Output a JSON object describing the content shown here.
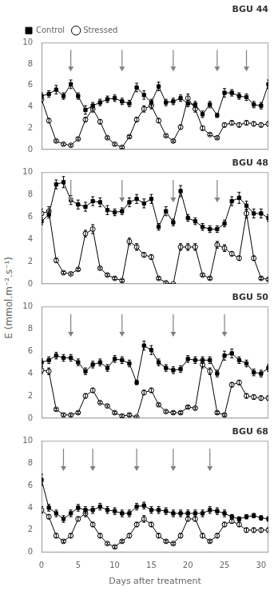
{
  "chart_data": [
    {
      "type": "line",
      "title": "BGU 44",
      "ylabel": "E (mmol.m⁻².s⁻¹)",
      "legend": "upper left",
      "xlim": [
        0,
        31
      ],
      "xticks": [
        0,
        5,
        10,
        15,
        20,
        25,
        30
      ],
      "ylim": [
        0,
        10
      ],
      "yticks": [
        0,
        2,
        4,
        6,
        8,
        10
      ],
      "grid": false,
      "tick_labels": "y",
      "series": [
        {
          "name": "Control",
          "color": "#000000",
          "marker": "filled_square",
          "line_style": "solid",
          "x": [
            0,
            1,
            2,
            3,
            4,
            5,
            6,
            7,
            8,
            9,
            10,
            11,
            12,
            13,
            14,
            15,
            16,
            17,
            18,
            19,
            20,
            21,
            22,
            23,
            24,
            25,
            26,
            27,
            28,
            29,
            30,
            31
          ],
          "values": [
            5.0,
            5.2,
            5.6,
            5.0,
            6.1,
            5.0,
            3.7,
            4.1,
            4.4,
            4.7,
            4.8,
            4.5,
            4.3,
            5.8,
            5.1,
            4.4,
            5.9,
            4.4,
            4.5,
            4.8,
            4.3,
            4.2,
            3.3,
            4.2,
            3.2,
            5.3,
            5.3,
            5.0,
            4.9,
            4.2,
            4.1,
            6.1
          ],
          "errors": [
            0.3,
            0.3,
            0.4,
            0.3,
            0.4,
            0.3,
            0.4,
            0.3,
            0.3,
            0.3,
            0.3,
            0.3,
            0.3,
            0.4,
            0.4,
            0.3,
            0.4,
            0.3,
            0.3,
            0.3,
            0.3,
            0.3,
            0.3,
            0.3,
            0.2,
            0.4,
            0.3,
            0.3,
            0.3,
            0.3,
            0.3,
            0.4
          ]
        },
        {
          "name": "Stressed",
          "color": "#000000",
          "marker": "open_circle",
          "line_style": "solid",
          "x": [
            0,
            1,
            2,
            3,
            4,
            5,
            6,
            7,
            8,
            9,
            10,
            11,
            12,
            13,
            14,
            15,
            16,
            17,
            18,
            19,
            20,
            21,
            22,
            23,
            24,
            25,
            26,
            27,
            28,
            29,
            30,
            31
          ],
          "values": [
            4.7,
            2.7,
            0.8,
            0.5,
            0.4,
            1.0,
            2.8,
            3.8,
            2.6,
            1.1,
            0.5,
            0.2,
            1.2,
            2.8,
            3.8,
            4.1,
            2.7,
            1.3,
            0.8,
            2.1,
            4.8,
            3.8,
            2.0,
            1.4,
            1.1,
            2.3,
            2.5,
            2.3,
            2.5,
            2.4,
            2.3,
            2.4
          ],
          "errors": [
            0.3,
            0.2,
            0.1,
            0.1,
            0.1,
            0.1,
            0.2,
            0.3,
            0.2,
            0.1,
            0.1,
            0.1,
            0.1,
            0.2,
            0.3,
            0.3,
            0.2,
            0.1,
            0.1,
            0.2,
            0.4,
            0.3,
            0.2,
            0.1,
            0.1,
            0.2,
            0.2,
            0.2,
            0.2,
            0.2,
            0.2,
            0.2
          ]
        }
      ],
      "arrows": {
        "x": [
          4,
          11,
          18,
          24,
          28
        ],
        "from": 9.3,
        "to": 7.3,
        "color": "#808080"
      }
    },
    {
      "type": "line",
      "title": "BGU 48",
      "xlim": [
        0,
        31
      ],
      "xticks": [
        0,
        5,
        10,
        15,
        20,
        25,
        30
      ],
      "ylim": [
        0,
        10
      ],
      "yticks": [
        0,
        2,
        4,
        6,
        8,
        10
      ],
      "grid": false,
      "tick_labels": "y",
      "series": [
        {
          "name": "Control",
          "color": "#000000",
          "marker": "filled_square",
          "line_style": "solid",
          "x": [
            0,
            1,
            2,
            3,
            4,
            5,
            6,
            7,
            8,
            9,
            10,
            11,
            12,
            13,
            14,
            15,
            16,
            17,
            18,
            19,
            20,
            21,
            22,
            23,
            24,
            25,
            26,
            27,
            28,
            29,
            30,
            31
          ],
          "values": [
            5.6,
            6.2,
            8.9,
            9.1,
            7.5,
            7.1,
            6.9,
            7.4,
            7.3,
            6.6,
            6.4,
            6.5,
            7.3,
            7.6,
            7.2,
            7.6,
            5.1,
            6.5,
            5.5,
            8.3,
            5.9,
            5.6,
            5.1,
            4.9,
            4.9,
            5.4,
            7.4,
            7.7,
            7.0,
            6.3,
            6.3,
            5.9
          ],
          "errors": [
            0.3,
            0.3,
            0.4,
            0.5,
            0.4,
            0.4,
            0.4,
            0.4,
            0.4,
            0.4,
            0.3,
            0.3,
            0.4,
            0.4,
            0.4,
            0.4,
            0.3,
            0.4,
            0.3,
            0.5,
            0.3,
            0.3,
            0.3,
            0.3,
            0.3,
            0.3,
            0.4,
            0.5,
            0.4,
            0.4,
            0.4,
            0.3
          ]
        },
        {
          "name": "Stressed",
          "color": "#000000",
          "marker": "open_circle",
          "line_style": "solid",
          "x": [
            0,
            1,
            2,
            3,
            4,
            5,
            6,
            7,
            8,
            9,
            10,
            11,
            12,
            13,
            14,
            15,
            16,
            17,
            18,
            19,
            20,
            21,
            22,
            23,
            24,
            25,
            26,
            27,
            28,
            29,
            30,
            31
          ],
          "values": [
            6.3,
            6.5,
            2.1,
            1.0,
            0.9,
            1.3,
            4.5,
            4.9,
            1.4,
            0.8,
            0.5,
            0.3,
            3.8,
            3.3,
            2.6,
            2.4,
            0.5,
            0.1,
            0.0,
            3.3,
            3.3,
            3.3,
            0.8,
            0.5,
            3.5,
            3.2,
            2.7,
            2.3,
            6.3,
            2.3,
            0.5,
            0.4
          ],
          "errors": [
            0.4,
            0.4,
            0.2,
            0.1,
            0.1,
            0.1,
            0.3,
            0.4,
            0.1,
            0.1,
            0.1,
            0.1,
            0.3,
            0.3,
            0.2,
            0.2,
            0.1,
            0.1,
            0.0,
            0.3,
            0.3,
            0.3,
            0.1,
            0.1,
            0.3,
            0.3,
            0.2,
            0.2,
            0.4,
            0.2,
            0.1,
            0.1
          ]
        }
      ],
      "arrows": {
        "x": [
          4,
          11,
          18,
          24
        ],
        "from": 9.3,
        "to": 7.3,
        "color": "#808080"
      }
    },
    {
      "type": "line",
      "title": "BGU 50",
      "xlim": [
        0,
        31
      ],
      "xticks": [
        0,
        5,
        10,
        15,
        20,
        25,
        30
      ],
      "ylim": [
        0,
        10
      ],
      "yticks": [
        0,
        2,
        4,
        6,
        8,
        10
      ],
      "grid": false,
      "tick_labels": "y",
      "series": [
        {
          "name": "Control",
          "color": "#000000",
          "marker": "filled_square",
          "line_style": "solid",
          "x": [
            0,
            1,
            2,
            3,
            4,
            5,
            6,
            7,
            8,
            9,
            10,
            11,
            12,
            13,
            14,
            15,
            16,
            17,
            18,
            19,
            20,
            21,
            22,
            23,
            24,
            25,
            26,
            27,
            28,
            29,
            30,
            31
          ],
          "values": [
            5.0,
            5.2,
            5.6,
            5.4,
            5.4,
            5.0,
            4.2,
            4.8,
            5.0,
            4.5,
            5.3,
            5.2,
            4.9,
            3.2,
            6.5,
            6.1,
            5.0,
            4.5,
            4.3,
            4.4,
            5.3,
            5.2,
            5.2,
            5.2,
            4.0,
            5.6,
            5.8,
            5.2,
            4.9,
            4.1,
            4.0,
            4.5
          ],
          "errors": [
            0.3,
            0.3,
            0.3,
            0.3,
            0.3,
            0.3,
            0.3,
            0.3,
            0.3,
            0.3,
            0.3,
            0.3,
            0.3,
            0.2,
            0.4,
            0.4,
            0.3,
            0.3,
            0.3,
            0.3,
            0.3,
            0.3,
            0.3,
            0.3,
            0.3,
            0.4,
            0.4,
            0.3,
            0.3,
            0.3,
            0.3,
            0.3
          ]
        },
        {
          "name": "Stressed",
          "color": "#000000",
          "marker": "open_circle",
          "line_style": "solid",
          "x": [
            0,
            1,
            2,
            3,
            4,
            5,
            6,
            7,
            8,
            9,
            10,
            11,
            12,
            13,
            14,
            15,
            16,
            17,
            18,
            19,
            20,
            21,
            22,
            23,
            24,
            25,
            26,
            27,
            28,
            29,
            30,
            31
          ],
          "values": [
            4.3,
            4.2,
            0.8,
            0.3,
            0.3,
            0.5,
            2.0,
            2.5,
            1.4,
            1.1,
            0.5,
            0.2,
            0.3,
            0.1,
            2.3,
            2.5,
            1.2,
            0.6,
            0.5,
            0.5,
            1.0,
            0.9,
            4.8,
            4.2,
            0.5,
            0.3,
            3.0,
            3.2,
            2.0,
            1.9,
            1.8,
            1.8
          ],
          "errors": [
            0.3,
            0.3,
            0.1,
            0.1,
            0.1,
            0.1,
            0.2,
            0.2,
            0.1,
            0.1,
            0.1,
            0.1,
            0.1,
            0.1,
            0.2,
            0.2,
            0.1,
            0.1,
            0.1,
            0.1,
            0.1,
            0.1,
            0.3,
            0.3,
            0.1,
            0.1,
            0.2,
            0.2,
            0.2,
            0.2,
            0.2,
            0.2
          ]
        }
      ],
      "arrows": {
        "x": [
          4,
          11,
          18,
          25
        ],
        "from": 9.3,
        "to": 7.3,
        "color": "#808080"
      }
    },
    {
      "type": "line",
      "title": "BGU 68",
      "xlabel": "Days after treatment",
      "xlim": [
        0,
        31
      ],
      "xticks": [
        0,
        5,
        10,
        15,
        20,
        25,
        30
      ],
      "ylim": [
        0,
        10
      ],
      "yticks": [
        0,
        2,
        4,
        6,
        8,
        10
      ],
      "grid": false,
      "tick_labels": true,
      "series": [
        {
          "name": "Control",
          "color": "#000000",
          "marker": "filled_square",
          "line_style": "solid",
          "x": [
            0,
            1,
            2,
            3,
            4,
            5,
            6,
            7,
            8,
            9,
            10,
            11,
            12,
            13,
            14,
            15,
            16,
            17,
            18,
            19,
            20,
            21,
            22,
            23,
            24,
            25,
            26,
            27,
            28,
            29,
            30,
            31
          ],
          "values": [
            6.5,
            4.0,
            3.5,
            3.0,
            3.5,
            4.0,
            3.8,
            3.8,
            4.1,
            3.8,
            3.7,
            3.5,
            3.5,
            4.1,
            4.2,
            3.8,
            3.8,
            3.7,
            3.5,
            3.5,
            3.5,
            3.5,
            3.5,
            3.8,
            3.7,
            3.5,
            3.2,
            3.0,
            3.2,
            3.3,
            3.1,
            3.0
          ],
          "errors": [
            0.5,
            0.3,
            0.3,
            0.3,
            0.3,
            0.3,
            0.3,
            0.3,
            0.3,
            0.3,
            0.3,
            0.3,
            0.3,
            0.3,
            0.3,
            0.3,
            0.3,
            0.3,
            0.3,
            0.3,
            0.3,
            0.3,
            0.3,
            0.3,
            0.3,
            0.3,
            0.2,
            0.2,
            0.2,
            0.2,
            0.2,
            0.2
          ]
        },
        {
          "name": "Stressed",
          "color": "#000000",
          "marker": "open_circle",
          "line_style": "solid",
          "x": [
            0,
            1,
            2,
            3,
            4,
            5,
            6,
            7,
            8,
            9,
            10,
            11,
            12,
            13,
            14,
            15,
            16,
            17,
            18,
            19,
            20,
            21,
            22,
            23,
            24,
            25,
            26,
            27,
            28,
            29,
            30,
            31
          ],
          "values": [
            3.8,
            3.2,
            1.5,
            1.0,
            1.5,
            3.0,
            3.5,
            2.5,
            1.5,
            0.8,
            0.5,
            1.0,
            1.5,
            2.5,
            3.0,
            2.5,
            1.5,
            1.0,
            0.8,
            1.5,
            3.0,
            3.0,
            1.5,
            1.0,
            1.5,
            2.5,
            2.8,
            2.5,
            2.0,
            2.0,
            2.0,
            2.0
          ],
          "errors": [
            0.3,
            0.2,
            0.2,
            0.1,
            0.2,
            0.2,
            0.3,
            0.2,
            0.2,
            0.1,
            0.1,
            0.1,
            0.2,
            0.2,
            0.3,
            0.2,
            0.2,
            0.1,
            0.1,
            0.2,
            0.2,
            0.2,
            0.2,
            0.1,
            0.2,
            0.2,
            0.2,
            0.2,
            0.2,
            0.2,
            0.2,
            0.2
          ]
        }
      ],
      "arrows": {
        "x": [
          3,
          7,
          13,
          18,
          23
        ],
        "from": 9.3,
        "to": 7.3,
        "color": "#808080"
      }
    }
  ]
}
